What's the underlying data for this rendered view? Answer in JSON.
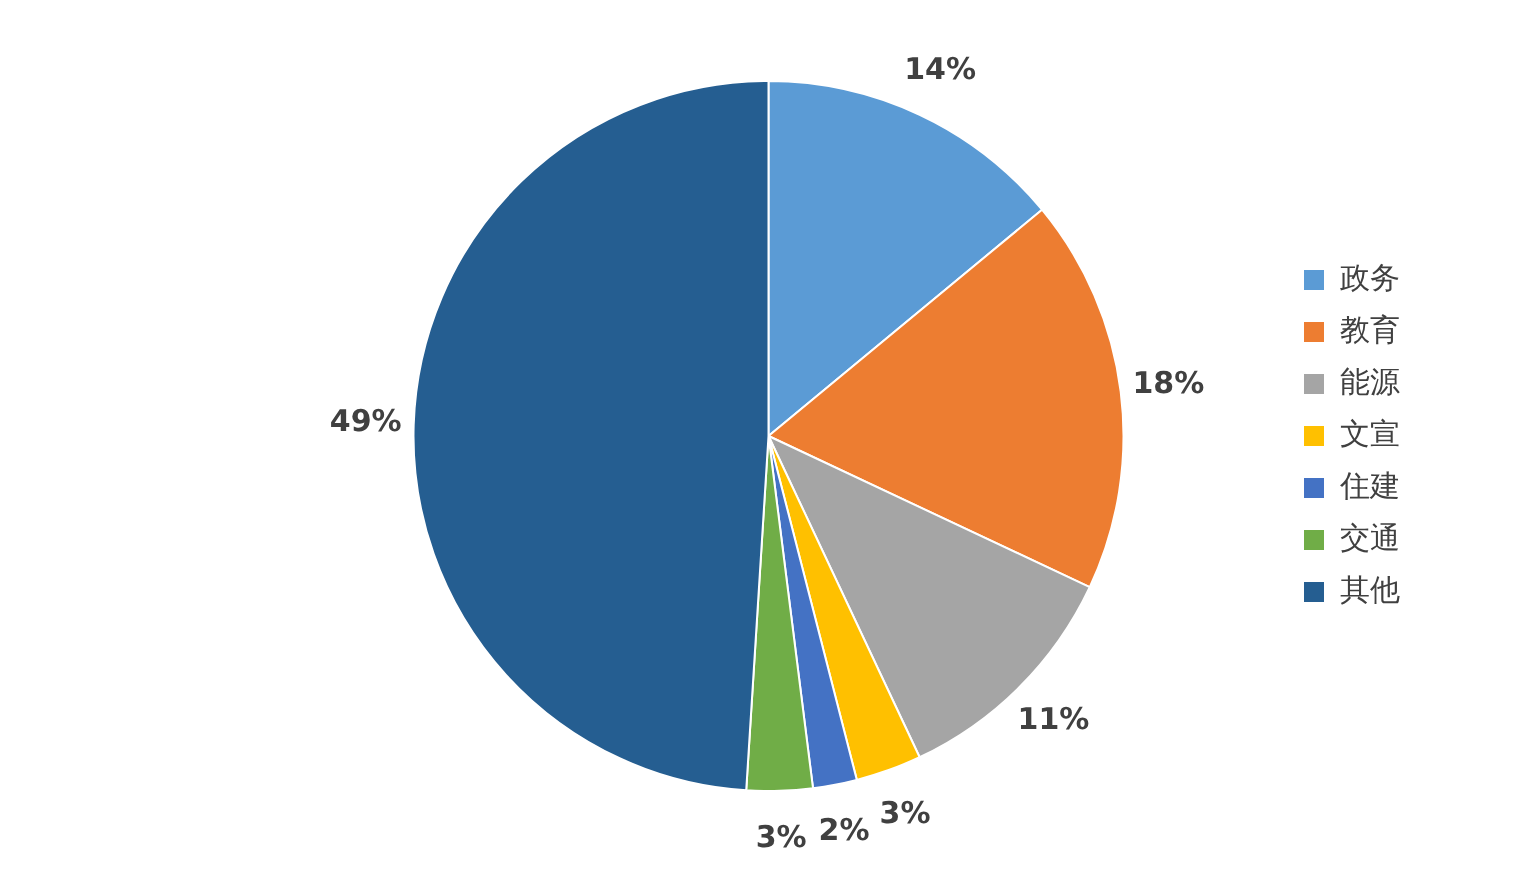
{
  "chart_data": {
    "type": "pie",
    "categories": [
      "政务",
      "教育",
      "能源",
      "文宣",
      "住建",
      "交通",
      "其他"
    ],
    "values": [
      14,
      18,
      11,
      3,
      2,
      3,
      49
    ],
    "value_labels": [
      "14%",
      "18%",
      "11%",
      "3%",
      "2%",
      "3%",
      "49%"
    ],
    "colors": [
      "#5b9bd5",
      "#ed7d31",
      "#a5a5a5",
      "#ffc000",
      "#4472c4",
      "#70ad47",
      "#255e91"
    ],
    "legend": "right"
  }
}
